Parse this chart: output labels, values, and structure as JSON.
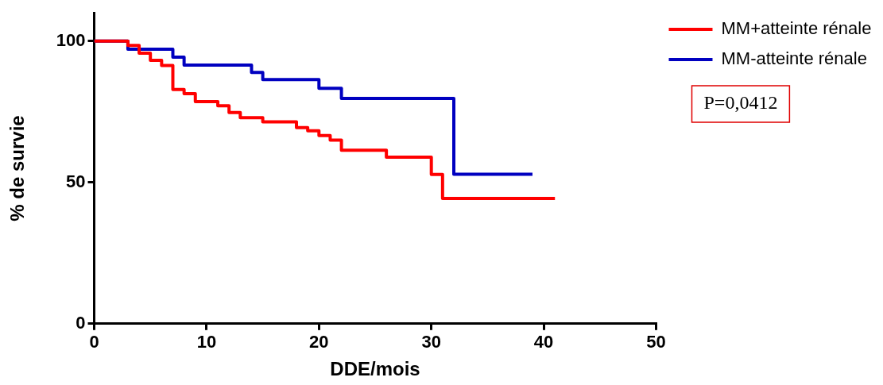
{
  "chart_data": {
    "type": "step",
    "xlabel": "DDE/mois",
    "ylabel": "% de survie",
    "xlim": [
      0,
      50
    ],
    "xticks": [
      0,
      10,
      20,
      30,
      40,
      50
    ],
    "ylim": [
      0,
      110
    ],
    "yticks": [
      0,
      50,
      100
    ],
    "grid": false,
    "legend": "top right",
    "marker": "none",
    "line_style": "solid",
    "annotations": [
      "P=0,0412"
    ],
    "series": [
      {
        "name": "MM+atteinte rénale",
        "color": "#ff0000",
        "x": [
          0,
          3,
          4,
          5,
          6,
          7,
          8,
          9,
          11,
          12,
          13,
          15,
          18,
          19,
          20,
          21,
          22,
          26,
          30,
          31,
          41
        ],
        "values": [
          100,
          98.5,
          95.7,
          93.2,
          91.4,
          82.9,
          81.4,
          78.6,
          77.1,
          74.7,
          72.9,
          71.4,
          69.4,
          68.3,
          66.6,
          65,
          61.4,
          58.9,
          52.8,
          44.3,
          44.3
        ]
      },
      {
        "name": "MM-atteinte rénale",
        "color": "#0000c0",
        "x": [
          0,
          3,
          7,
          8,
          14,
          15,
          20,
          22,
          32,
          39
        ],
        "values": [
          100,
          97.1,
          94.3,
          91.5,
          88.9,
          86.4,
          83.3,
          79.7,
          52.9,
          52.9
        ]
      }
    ]
  }
}
